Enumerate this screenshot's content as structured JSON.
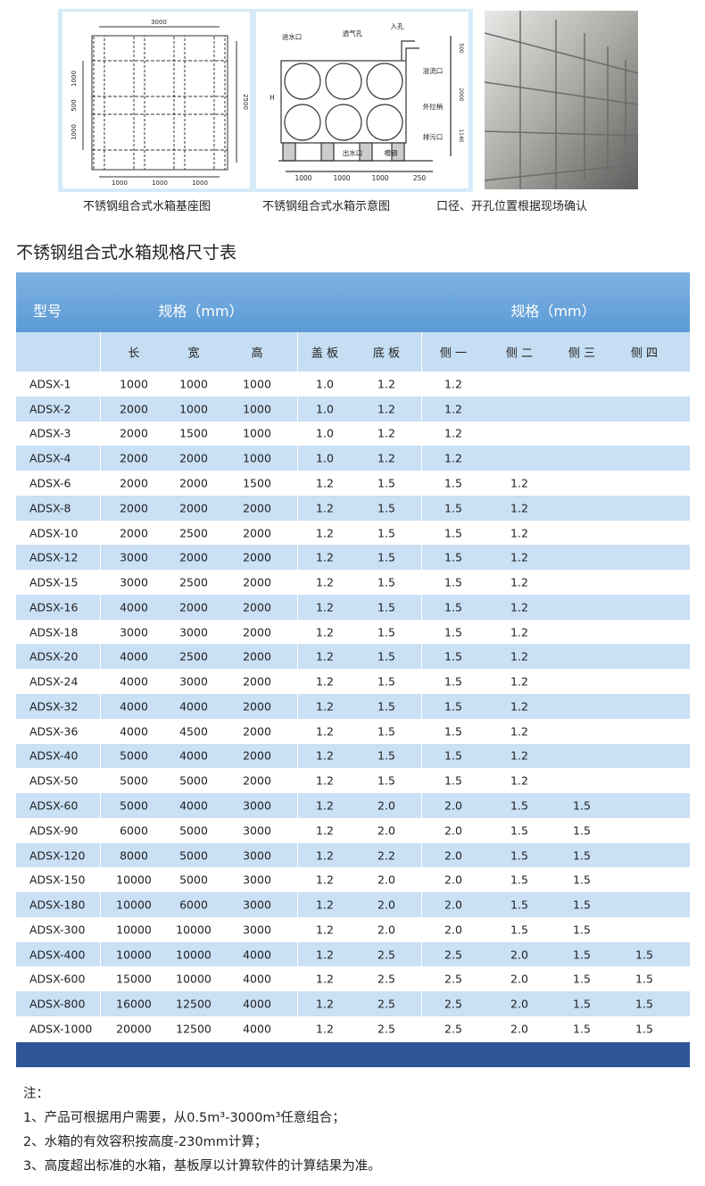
{
  "figures": [
    {
      "caption": "不锈钢组合式水箱基座图",
      "labels": [
        "3000",
        "1000",
        "500",
        "1000",
        "2500",
        "1000",
        "1000",
        "1000"
      ]
    },
    {
      "caption": "不锈钢组合式水箱示意图",
      "labels": [
        "进水口",
        "透气孔",
        "入孔",
        "溢流口",
        "H",
        "外拉梢",
        "排污口",
        "出水口",
        "槽钢",
        "500",
        "2000",
        "1140",
        "1000",
        "1000",
        "1000",
        "250"
      ]
    },
    {
      "caption": "口径、开孔位置根据现场确认"
    }
  ],
  "table": {
    "title": "不锈钢组合式水箱规格尺寸表",
    "header": [
      "型号",
      "规格（mm）",
      "规格（mm）"
    ],
    "subheader": [
      "长",
      "宽",
      "高",
      "盖 板",
      "底 板",
      "侧 一",
      "侧 二",
      "侧 三",
      "侧 四"
    ],
    "rows": [
      [
        "ADSX-1",
        "1000",
        "1000",
        "1000",
        "1.0",
        "1.2",
        "1.2"
      ],
      [
        "ADSX-2",
        "2000",
        "1000",
        "1000",
        "1.0",
        "1.2",
        "1.2"
      ],
      [
        "ADSX-3",
        "2000",
        "1500",
        "1000",
        "1.0",
        "1.2",
        "1.2"
      ],
      [
        "ADSX-4",
        "2000",
        "2000",
        "1000",
        "1.0",
        "1.2",
        "1.2"
      ],
      [
        "ADSX-6",
        "2000",
        "2000",
        "1500",
        "1.2",
        "1.5",
        "1.5",
        "1.2"
      ],
      [
        "ADSX-8",
        "2000",
        "2000",
        "2000",
        "1.2",
        "1.5",
        "1.5",
        "1.2"
      ],
      [
        "ADSX-10",
        "2000",
        "2500",
        "2000",
        "1.2",
        "1.5",
        "1.5",
        "1.2"
      ],
      [
        "ADSX-12",
        "3000",
        "2000",
        "2000",
        "1.2",
        "1.5",
        "1.5",
        "1.2"
      ],
      [
        "ADSX-15",
        "3000",
        "2500",
        "2000",
        "1.2",
        "1.5",
        "1.5",
        "1.2"
      ],
      [
        "ADSX-16",
        "4000",
        "2000",
        "2000",
        "1.2",
        "1.5",
        "1.5",
        "1.2"
      ],
      [
        "ADSX-18",
        "3000",
        "3000",
        "2000",
        "1.2",
        "1.5",
        "1.5",
        "1.2"
      ],
      [
        "ADSX-20",
        "4000",
        "2500",
        "2000",
        "1.2",
        "1.5",
        "1.5",
        "1.2"
      ],
      [
        "ADSX-24",
        "4000",
        "3000",
        "2000",
        "1.2",
        "1.5",
        "1.5",
        "1.2"
      ],
      [
        "ADSX-32",
        "4000",
        "4000",
        "2000",
        "1.2",
        "1.5",
        "1.5",
        "1.2"
      ],
      [
        "ADSX-36",
        "4000",
        "4500",
        "2000",
        "1.2",
        "1.5",
        "1.5",
        "1.2"
      ],
      [
        "ADSX-40",
        "5000",
        "4000",
        "2000",
        "1.2",
        "1.5",
        "1.5",
        "1.2"
      ],
      [
        "ADSX-50",
        "5000",
        "5000",
        "2000",
        "1.2",
        "1.5",
        "1.5",
        "1.2"
      ],
      [
        "ADSX-60",
        "5000",
        "4000",
        "3000",
        "1.2",
        "2.0",
        "2.0",
        "1.5",
        "1.5"
      ],
      [
        "ADSX-90",
        "6000",
        "5000",
        "3000",
        "1.2",
        "2.0",
        "2.0",
        "1.5",
        "1.5"
      ],
      [
        "ADSX-120",
        "8000",
        "5000",
        "3000",
        "1.2",
        "2.2",
        "2.0",
        "1.5",
        "1.5"
      ],
      [
        "ADSX-150",
        "10000",
        "5000",
        "3000",
        "1.2",
        "2.0",
        "2.0",
        "1.5",
        "1.5"
      ],
      [
        "ADSX-180",
        "10000",
        "6000",
        "3000",
        "1.2",
        "2.0",
        "2.0",
        "1.5",
        "1.5"
      ],
      [
        "ADSX-300",
        "10000",
        "10000",
        "3000",
        "1.2",
        "2.0",
        "2.0",
        "1.5",
        "1.5"
      ],
      [
        "ADSX-400",
        "10000",
        "10000",
        "4000",
        "1.2",
        "2.5",
        "2.5",
        "2.0",
        "1.5",
        "1.5"
      ],
      [
        "ADSX-600",
        "15000",
        "10000",
        "4000",
        "1.2",
        "2.5",
        "2.5",
        "2.0",
        "1.5",
        "1.5"
      ],
      [
        "ADSX-800",
        "16000",
        "12500",
        "4000",
        "1.2",
        "2.5",
        "2.5",
        "2.0",
        "1.5",
        "1.5"
      ],
      [
        "ADSX-1000",
        "20000",
        "12500",
        "4000",
        "1.2",
        "2.5",
        "2.5",
        "2.0",
        "1.5",
        "1.5"
      ]
    ]
  },
  "notes": {
    "heading": "注：",
    "items": [
      "1、产品可根据用户需要，从0.5m³-3000m³任意组合；",
      "2、水箱的有效容积按高度-230mm计算；",
      "3、高度超出标准的水箱，基板厚以计算软件的计算结果为准。"
    ]
  }
}
